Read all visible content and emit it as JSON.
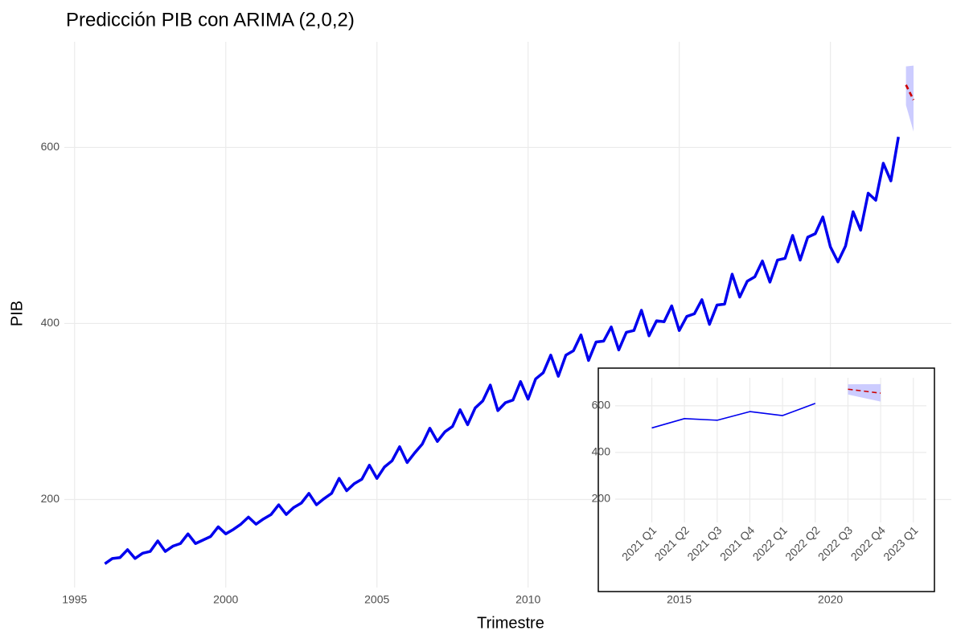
{
  "chart_data": [
    {
      "type": "line",
      "title": "Predicción PIB con ARIMA (2,0,2)",
      "xlabel": "Trimestre",
      "ylabel": "PIB",
      "x": [
        1996,
        1996.25,
        1996.5,
        1996.75,
        1997,
        1997.25,
        1997.5,
        1997.75,
        1998,
        1998.25,
        1998.5,
        1998.75,
        1999,
        1999.25,
        1999.5,
        1999.75,
        2000,
        2000.25,
        2000.5,
        2000.75,
        2001,
        2001.25,
        2001.5,
        2001.75,
        2002,
        2002.25,
        2002.5,
        2002.75,
        2003,
        2003.25,
        2003.5,
        2003.75,
        2004,
        2004.25,
        2004.5,
        2004.75,
        2005,
        2005.25,
        2005.5,
        2005.75,
        2006,
        2006.25,
        2006.5,
        2006.75,
        2007,
        2007.25,
        2007.5,
        2007.75,
        2008,
        2008.25,
        2008.5,
        2008.75,
        2009,
        2009.25,
        2009.5,
        2009.75,
        2010,
        2010.25,
        2010.5,
        2010.75,
        2011,
        2011.25,
        2011.5,
        2011.75,
        2012,
        2012.25,
        2012.5,
        2012.75,
        2013,
        2013.25,
        2013.5,
        2013.75,
        2014,
        2014.25,
        2014.5,
        2014.75,
        2015,
        2015.25,
        2015.5,
        2015.75,
        2016,
        2016.25,
        2016.5,
        2016.75,
        2017,
        2017.25,
        2017.5,
        2017.75,
        2018,
        2018.25,
        2018.5,
        2018.75,
        2019,
        2019.25,
        2019.5,
        2019.75,
        2020,
        2020.25,
        2020.5,
        2020.75,
        2021,
        2021.25,
        2021.5,
        2021.75,
        2022,
        2022.25
      ],
      "values": [
        127,
        133,
        134,
        143,
        133,
        139,
        141,
        153,
        141,
        147,
        150,
        161,
        150,
        154,
        158,
        169,
        161,
        166,
        172,
        180,
        172,
        178,
        183,
        194,
        183,
        191,
        196,
        207,
        194,
        201,
        207,
        224,
        210,
        218,
        223,
        239,
        224,
        237,
        244,
        260,
        242,
        253,
        263,
        281,
        266,
        277,
        283,
        302,
        285,
        304,
        312,
        330,
        301,
        310,
        313,
        334,
        314,
        337,
        344,
        364,
        340,
        364,
        369,
        387,
        358,
        379,
        380,
        396,
        370,
        390,
        392,
        415,
        386,
        403,
        402,
        420,
        392,
        408,
        411,
        427,
        399,
        421,
        422,
        456,
        430,
        448,
        453,
        471,
        447,
        472,
        474,
        500,
        472,
        498,
        502,
        521,
        487,
        470,
        488,
        527,
        506,
        548,
        540,
        582,
        562,
        612
      ],
      "color": "#0000ee",
      "forecast": {
        "x": [
          2022.5,
          2022.75
        ],
        "values": [
          671,
          654
        ],
        "lower": [
          648,
          618
        ],
        "upper": [
          692,
          693
        ],
        "color": "#cc0000",
        "band_color": "#ccccff"
      },
      "xlim": [
        1994.66,
        2024.0
      ],
      "ylim": [
        100,
        720
      ],
      "xticks": [
        1995,
        2000,
        2005,
        2010,
        2015,
        2020
      ],
      "yticks": [
        200,
        400,
        600
      ],
      "grid": true
    },
    {
      "type": "line",
      "x": [
        2021,
        2021.25,
        2021.5,
        2021.75,
        2022,
        2022.25
      ],
      "values": [
        505,
        545,
        538,
        575,
        558,
        610
      ],
      "color": "#0000ee",
      "forecast": {
        "x": [
          2022.5,
          2022.75
        ],
        "values": [
          671,
          654
        ],
        "lower": [
          648,
          618
        ],
        "upper": [
          692,
          693
        ],
        "color": "#cc0000",
        "band_color": "#ccccff"
      },
      "xlim": [
        2020.72,
        2023.1
      ],
      "ylim": [
        100,
        720
      ],
      "xticks": [
        {
          "value": 2021,
          "label": "2021 Q1"
        },
        {
          "value": 2021.25,
          "label": "2021 Q2"
        },
        {
          "value": 2021.5,
          "label": "2021 Q3"
        },
        {
          "value": 2021.75,
          "label": "2021 Q4"
        },
        {
          "value": 2022,
          "label": "2022 Q1"
        },
        {
          "value": 2022.25,
          "label": "2022 Q2"
        },
        {
          "value": 2022.5,
          "label": "2022 Q3"
        },
        {
          "value": 2022.75,
          "label": "2022 Q4"
        },
        {
          "value": 2023,
          "label": "2023 Q1"
        }
      ],
      "yticks": [
        200,
        400,
        600
      ],
      "grid": true
    }
  ]
}
